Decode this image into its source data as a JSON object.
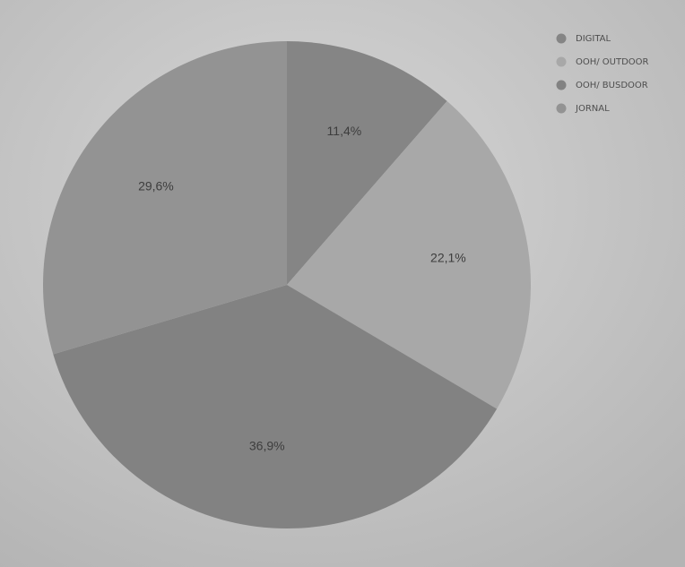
{
  "chart_data": {
    "type": "pie",
    "legend_position": "top-right",
    "slices": [
      {
        "label": "DIGITAL",
        "value": 11.4,
        "display": "11,4%",
        "color": "#858585"
      },
      {
        "label": "OOH/ OUTDOOR",
        "value": 22.1,
        "display": "22,1%",
        "color": "#a8a8a8"
      },
      {
        "label": "OOH/ BUSDOOR",
        "value": 36.9,
        "display": "36,9%",
        "color": "#828282"
      },
      {
        "label": "JORNAL",
        "value": 29.6,
        "display": "29,6%",
        "color": "#939393"
      }
    ]
  }
}
